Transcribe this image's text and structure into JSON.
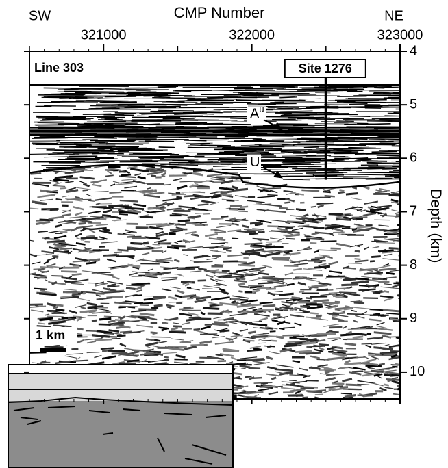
{
  "chart_data": {
    "type": "seismic-section",
    "x_label": "CMP Number",
    "y_label": "Depth (km)",
    "left_direction": "SW",
    "right_direction": "NE",
    "xlim": [
      320500,
      323000
    ],
    "xticks": [
      321000,
      322000,
      323000
    ],
    "ylim": [
      4,
      10.5
    ],
    "yticks": [
      4,
      5,
      6,
      7,
      8,
      9,
      10
    ],
    "line_label": "Line 303",
    "site": {
      "label": "Site 1276",
      "cmp": 322500,
      "depth": 6.4
    },
    "horizons": [
      {
        "name": "A",
        "superscript": "u",
        "depth": 5.5
      },
      {
        "name": "U",
        "depth": 6.4
      }
    ],
    "scale_bar": "1 km"
  }
}
